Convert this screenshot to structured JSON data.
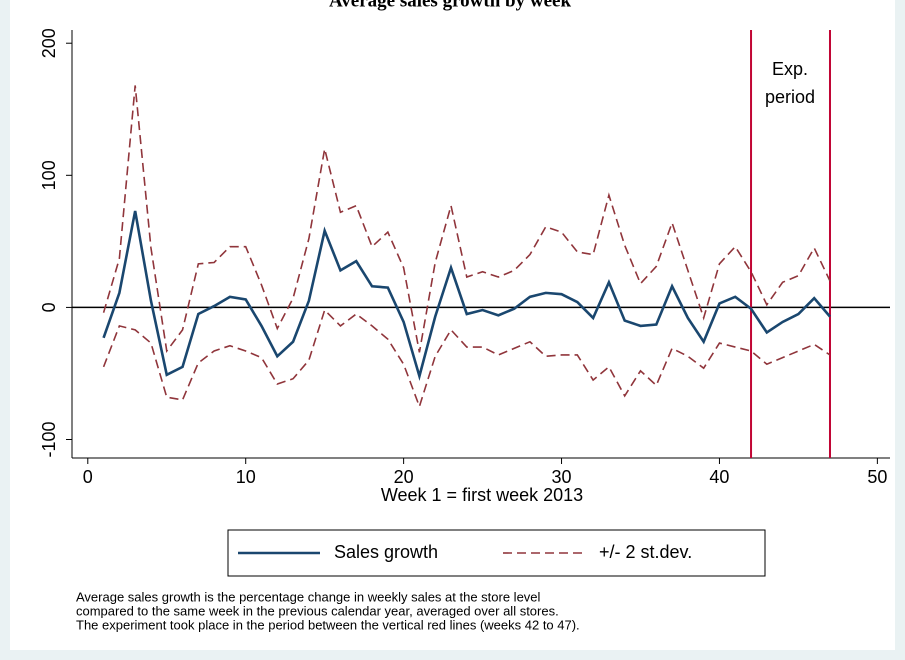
{
  "chart_data": {
    "type": "line",
    "title": "Average sales growth by week",
    "x_label": "Week 1 = first week 2013",
    "x": [
      1,
      2,
      3,
      4,
      5,
      6,
      7,
      8,
      9,
      10,
      11,
      12,
      13,
      14,
      15,
      16,
      17,
      18,
      19,
      20,
      21,
      22,
      23,
      24,
      25,
      26,
      27,
      28,
      29,
      30,
      31,
      32,
      33,
      34,
      35,
      36,
      37,
      38,
      39,
      40,
      41,
      42,
      43,
      44,
      45,
      46,
      47
    ],
    "series": [
      {
        "name": "Sales growth",
        "color": "#1a476f",
        "dash": false,
        "values": [
          -23,
          11,
          73,
          5,
          -51,
          -45,
          -5,
          1,
          8,
          6,
          -14,
          -37,
          -26,
          5,
          58,
          28,
          35,
          16,
          15,
          -11,
          -52,
          -7,
          30,
          -5,
          -2,
          -6,
          -1,
          8,
          11,
          10,
          4,
          -8,
          19,
          -10,
          -14,
          -13,
          16,
          -8,
          -26,
          3,
          8,
          -1,
          -19,
          -11,
          -5,
          7,
          -7
        ]
      },
      {
        "name": "+/- 2 st.dev.",
        "color": "#90353b",
        "dash": true,
        "values": [
          -4,
          37,
          168,
          45,
          -33,
          -17,
          33,
          34,
          46,
          46,
          17,
          -16,
          7,
          52,
          120,
          72,
          77,
          46,
          57,
          30,
          -34,
          34,
          77,
          23,
          27,
          23,
          28,
          40,
          61,
          57,
          42,
          40,
          85,
          47,
          18,
          31,
          64,
          28,
          -8,
          33,
          46,
          27,
          2,
          19,
          24,
          45,
          20
        ]
      },
      {
        "color": "#90353b",
        "dash": true,
        "values": [
          -45,
          -14,
          -17,
          -27,
          -68,
          -70,
          -42,
          -33,
          -29,
          -33,
          -38,
          -58,
          -54,
          -40,
          -2,
          -14,
          -5,
          -14,
          -24,
          -43,
          -75,
          -37,
          -17,
          -30,
          -30,
          -36,
          -31,
          -26,
          -37,
          -36,
          -36,
          -55,
          -45,
          -67,
          -48,
          -59,
          -31,
          -37,
          -46,
          -27,
          -30,
          -33,
          -43,
          -38,
          -33,
          -28,
          -36
        ]
      }
    ],
    "xlim": [
      -1,
      50.8
    ],
    "ylim": [
      -114,
      210
    ],
    "xticks": [
      0,
      10,
      20,
      30,
      40,
      50
    ],
    "yticks": [
      -100,
      0,
      100,
      200
    ],
    "hline": 0,
    "vlines": [
      42,
      47
    ],
    "vline_color": "#c10534",
    "annotation": [
      "Exp.",
      "period"
    ],
    "notes": [
      "Average sales growth is the percentage change in weekly sales at the store level",
      "compared to the same week in the previous calendar year, averaged over all stores.",
      "The experiment took place in the period between the vertical red lines (weeks 42 to 47)."
    ]
  }
}
